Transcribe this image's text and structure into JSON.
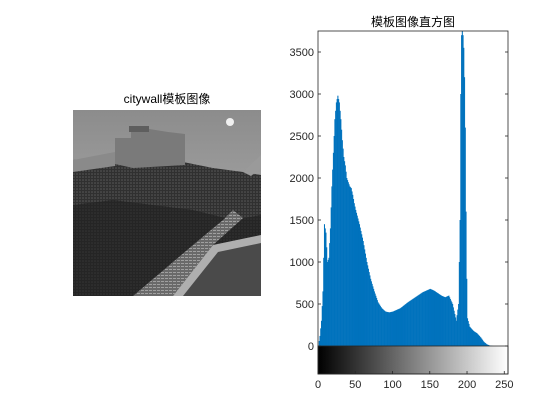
{
  "left_panel": {
    "title": "citywall模板图像"
  },
  "chart_data": {
    "type": "bar",
    "title": "模板图像直方图",
    "xlabel": "",
    "ylabel": "",
    "xlim": [
      0,
      255
    ],
    "ylim": [
      -300,
      3750
    ],
    "x_ticks": [
      "0",
      "50",
      "100",
      "150",
      "200",
      "250"
    ],
    "x_tick_values": [
      0,
      50,
      100,
      150,
      200,
      250
    ],
    "y_ticks": [
      "0",
      "500",
      "1000",
      "1500",
      "2000",
      "2500",
      "3000",
      "3500"
    ],
    "y_tick_values": [
      0,
      500,
      1000,
      1500,
      2000,
      2500,
      3000,
      3500
    ],
    "bar_color": "#0072BD",
    "colorbar": "grayscale 0-255",
    "histogram_shape_points": [
      [
        0,
        0
      ],
      [
        2,
        120
      ],
      [
        4,
        300
      ],
      [
        6,
        650
      ],
      [
        8,
        1450
      ],
      [
        10,
        1350
      ],
      [
        12,
        1000
      ],
      [
        14,
        1050
      ],
      [
        16,
        1400
      ],
      [
        18,
        1900
      ],
      [
        20,
        2300
      ],
      [
        22,
        2700
      ],
      [
        24,
        2900
      ],
      [
        26,
        2980
      ],
      [
        28,
        2900
      ],
      [
        30,
        2700
      ],
      [
        32,
        2450
      ],
      [
        34,
        2250
      ],
      [
        36,
        2150
      ],
      [
        38,
        2000
      ],
      [
        40,
        1950
      ],
      [
        42,
        1900
      ],
      [
        44,
        1880
      ],
      [
        46,
        1800
      ],
      [
        48,
        1700
      ],
      [
        50,
        1620
      ],
      [
        55,
        1450
      ],
      [
        60,
        1250
      ],
      [
        65,
        1000
      ],
      [
        70,
        800
      ],
      [
        75,
        650
      ],
      [
        80,
        520
      ],
      [
        85,
        450
      ],
      [
        90,
        410
      ],
      [
        95,
        400
      ],
      [
        100,
        410
      ],
      [
        110,
        450
      ],
      [
        120,
        520
      ],
      [
        130,
        580
      ],
      [
        140,
        640
      ],
      [
        150,
        680
      ],
      [
        155,
        660
      ],
      [
        160,
        630
      ],
      [
        165,
        600
      ],
      [
        170,
        580
      ],
      [
        175,
        600
      ],
      [
        180,
        500
      ],
      [
        185,
        300
      ],
      [
        188,
        500
      ],
      [
        190,
        1500
      ],
      [
        191,
        3000
      ],
      [
        192,
        3700
      ],
      [
        193,
        3750
      ],
      [
        194,
        3700
      ],
      [
        195,
        3550
      ],
      [
        196,
        3200
      ],
      [
        197,
        2600
      ],
      [
        198,
        1600
      ],
      [
        199,
        800
      ],
      [
        200,
        330
      ],
      [
        203,
        230
      ],
      [
        208,
        180
      ],
      [
        213,
        150
      ],
      [
        218,
        100
      ],
      [
        222,
        50
      ],
      [
        226,
        20
      ],
      [
        230,
        5
      ],
      [
        235,
        0
      ],
      [
        255,
        0
      ]
    ]
  }
}
